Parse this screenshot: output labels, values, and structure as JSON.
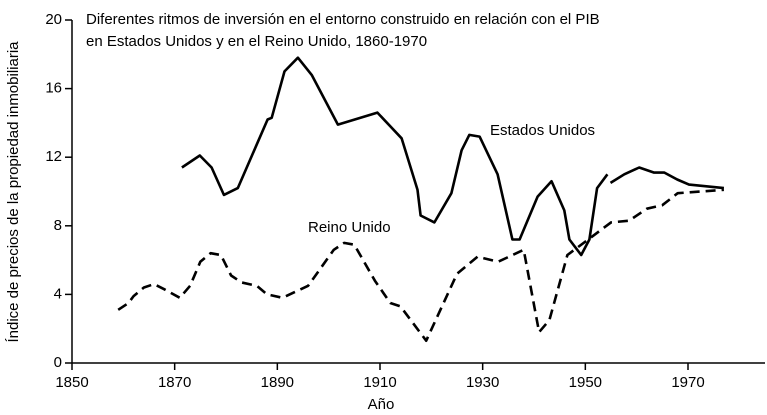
{
  "chart_data": {
    "type": "line",
    "title": [
      "Diferentes ritmos de inversión en el entorno construido en relación con el PIB",
      "en Estados Unidos y en el Reino Unido, 1860-1970"
    ],
    "xlabel": "Año",
    "ylabel": "Índice de precios de la propiedad inmobiliaria",
    "xlim": [
      1850,
      1985
    ],
    "xticks": [
      1850,
      1870,
      1890,
      1910,
      1930,
      1950,
      1970
    ],
    "ylim": [
      0,
      20
    ],
    "yticks": [
      0,
      4,
      8,
      12,
      16,
      20
    ],
    "series": [
      {
        "name": "Estados Unidos",
        "color": "#000000",
        "dashed": false,
        "x": [
          1871.4,
          1874.9,
          1877.2,
          1879.6,
          1882.3,
          1888.1,
          1888.9,
          1891.4,
          1894,
          1896.7,
          1901.8,
          1909.5,
          1914.2,
          1917.3,
          1917.9,
          1920.6,
          1923.9,
          1925.9,
          1927.4,
          1929.4,
          1932.9,
          1935.8,
          1937.2,
          1940.7,
          1943.4,
          1945.9,
          1946.9,
          1949.2,
          1950.8,
          1952.3,
          1954.3,
          1954.6,
          1954.9,
          1957.6,
          1960.5,
          1963.4,
          1965.4,
          1967.9,
          1970.2,
          1977
        ],
        "values": [
          11.4,
          12.1,
          11.4,
          9.8,
          10.2,
          14.2,
          14.3,
          17,
          17.8,
          16.8,
          13.9,
          14.6,
          13.1,
          10.1,
          8.6,
          8.2,
          9.9,
          12.4,
          13.3,
          13.2,
          11,
          7.2,
          7.2,
          9.7,
          10.6,
          8.9,
          7.2,
          6.3,
          7.2,
          10.2,
          11,
          null,
          10.5,
          11,
          11.4,
          11.1,
          11.1,
          10.7,
          10.4,
          10.2
        ]
      },
      {
        "name": "Reino Unido",
        "color": "#000000",
        "dashed": true,
        "x": [
          1859,
          1861,
          1862,
          1864,
          1866,
          1868,
          1871,
          1873,
          1875,
          1877,
          1879,
          1881,
          1883,
          1886,
          1888,
          1891,
          1896,
          1901,
          1903,
          1905,
          1909,
          1912,
          1914,
          1919,
          1925,
          1929,
          1933,
          1938,
          1941,
          1943,
          1946.5,
          1951,
          1955,
          1958.5,
          1962,
          1965,
          1968,
          1977
        ],
        "values": [
          3.1,
          3.5,
          3.9,
          4.4,
          4.6,
          4.3,
          3.8,
          4.5,
          5.9,
          6.4,
          6.3,
          5.1,
          4.7,
          4.5,
          4.0,
          3.8,
          4.5,
          6.6,
          7.0,
          6.9,
          4.8,
          3.5,
          3.3,
          1.3,
          5.2,
          6.2,
          5.9,
          6.6,
          1.8,
          2.5,
          6.3,
          7.3,
          8.2,
          8.3,
          9.0,
          9.2,
          9.9,
          10.1
        ]
      }
    ]
  }
}
